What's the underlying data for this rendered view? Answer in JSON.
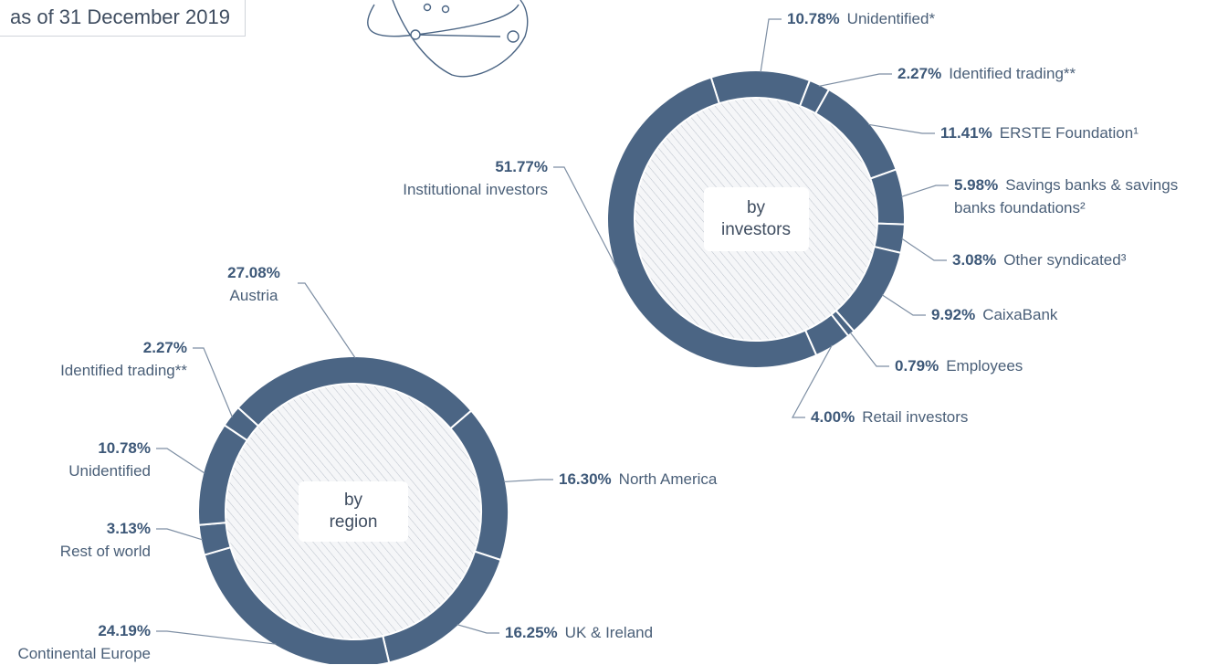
{
  "note": "as of 31 December 2019",
  "chart_data": [
    {
      "type": "pie",
      "center_label": "by investors",
      "color": "#4b6584",
      "categories": [
        "Unidentified*",
        "Identified trading**",
        "ERSTE Foundation¹",
        "Savings banks & savings banks foundations²",
        "Other syndicated³",
        "CaixaBank",
        "Employees",
        "Retail investors",
        "Institutional investors"
      ],
      "values": [
        10.78,
        2.27,
        11.41,
        5.98,
        3.08,
        9.92,
        0.79,
        4.0,
        51.77
      ],
      "value_labels": [
        "10.78%",
        "2.27%",
        "11.41%",
        "5.98%",
        "3.08%",
        "9.92%",
        "0.79%",
        "4.00%",
        "51.77%"
      ]
    },
    {
      "type": "pie",
      "center_label": "by region",
      "color": "#4b6584",
      "categories": [
        "Austria",
        "North America",
        "UK & Ireland",
        "Continental Europe",
        "Rest of world",
        "Unidentified",
        "Identified trading**"
      ],
      "values": [
        27.08,
        16.3,
        16.25,
        24.19,
        3.13,
        10.78,
        2.27
      ],
      "value_labels": [
        "27.08%",
        "16.30%",
        "16.25%",
        "24.19%",
        "3.13%",
        "10.78%",
        "2.27%"
      ]
    }
  ]
}
